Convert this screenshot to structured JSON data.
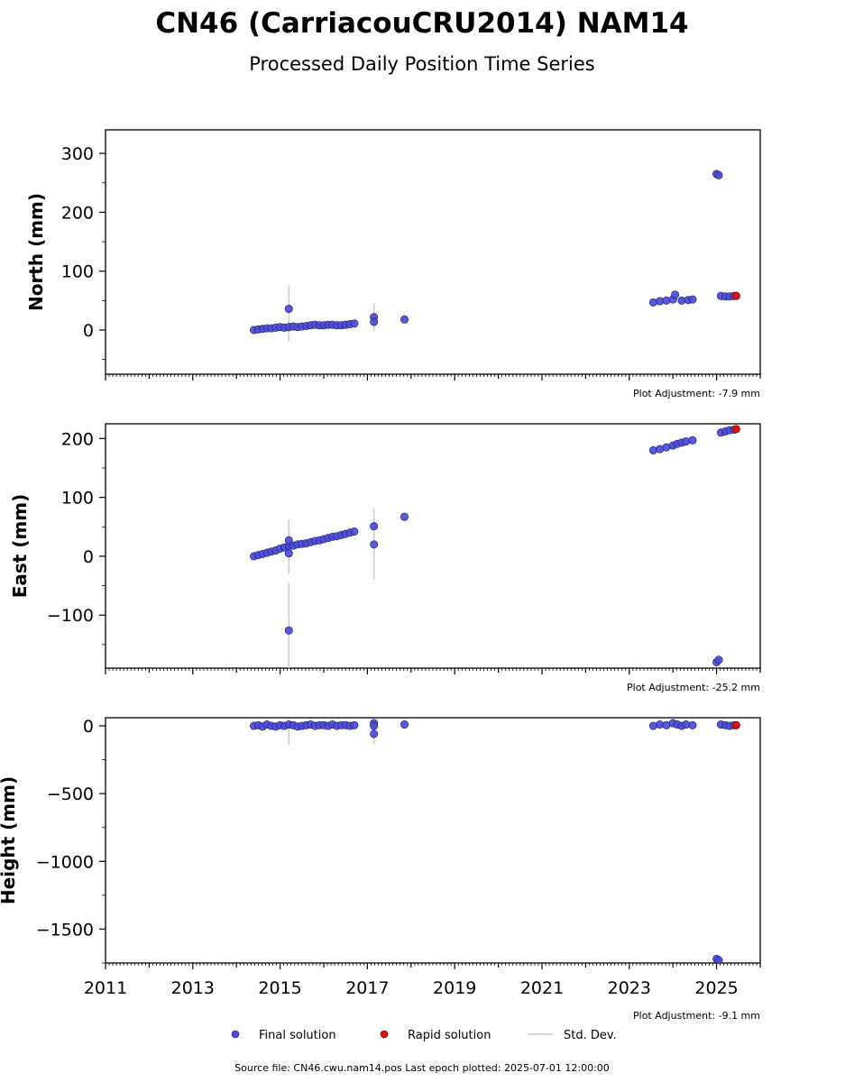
{
  "title": "CN46 (CarriacouCRU2014) NAM14",
  "subtitle": "Processed Daily Position Time Series",
  "footer": "Source file: CN46.cwu.nam14.pos  Last epoch plotted: 2025-07-01 12:00:00",
  "legend": {
    "final": "Final solution",
    "rapid": "Rapid solution",
    "std": "Std. Dev."
  },
  "colors": {
    "final": "#4a4ae0",
    "rapid": "#e01010",
    "std": "#cccccc"
  },
  "chart_data": [
    {
      "type": "scatter",
      "ylabel": "North (mm)",
      "adjustment": "Plot Adjustment: -7.9 mm",
      "xlim": [
        2011,
        2026
      ],
      "ylim": [
        -75,
        340
      ],
      "yticks": [
        0,
        100,
        200,
        300
      ],
      "ytick_labels": [
        "0",
        "100",
        "200",
        "300"
      ],
      "xticks": [
        2011,
        2013,
        2015,
        2017,
        2019,
        2021,
        2023,
        2025
      ],
      "xtick_labels": [
        "2011",
        "2013",
        "2015",
        "2017",
        "2019",
        "2021",
        "2023",
        "2025"
      ],
      "final": {
        "x": [
          2014.4,
          2014.5,
          2014.6,
          2014.7,
          2014.8,
          2014.9,
          2015.0,
          2015.1,
          2015.2,
          2015.3,
          2015.4,
          2015.5,
          2015.6,
          2015.7,
          2015.8,
          2015.9,
          2016.0,
          2016.1,
          2016.2,
          2016.3,
          2016.4,
          2016.5,
          2016.6,
          2016.7,
          2015.2,
          2017.15,
          2017.15,
          2017.85,
          2023.55,
          2023.7,
          2023.85,
          2024.0,
          2024.05,
          2024.2,
          2024.35,
          2024.45,
          2025.0,
          2025.05,
          2025.1,
          2025.2,
          2025.3,
          2025.4
        ],
        "y": [
          0,
          1,
          2,
          3,
          3,
          4,
          5,
          4,
          5,
          6,
          5,
          6,
          7,
          8,
          9,
          8,
          8,
          9,
          9,
          8,
          8,
          9,
          10,
          11,
          36,
          22,
          14,
          18,
          47,
          49,
          50,
          52,
          60,
          50,
          51,
          52,
          265,
          263,
          58,
          57,
          57,
          58
        ]
      },
      "rapid": {
        "x": [
          2025.45
        ],
        "y": [
          58
        ]
      },
      "std": [
        {
          "x": 2015.2,
          "y0": -20,
          "y1": 76
        },
        {
          "x": 2017.15,
          "y0": -2,
          "y1": 46
        }
      ]
    },
    {
      "type": "scatter",
      "ylabel": "East (mm)",
      "adjustment": "Plot Adjustment: -25.2 mm",
      "xlim": [
        2011,
        2026
      ],
      "ylim": [
        -190,
        225
      ],
      "yticks": [
        -100,
        0,
        100,
        200
      ],
      "ytick_labels": [
        "−100",
        "0",
        "100",
        "200"
      ],
      "xticks": [
        2011,
        2013,
        2015,
        2017,
        2019,
        2021,
        2023,
        2025
      ],
      "xtick_labels": [
        "2011",
        "2013",
        "2015",
        "2017",
        "2019",
        "2021",
        "2023",
        "2025"
      ],
      "final": {
        "x": [
          2014.4,
          2014.5,
          2014.6,
          2014.7,
          2014.8,
          2014.9,
          2015.0,
          2015.1,
          2015.2,
          2015.3,
          2015.4,
          2015.5,
          2015.6,
          2015.7,
          2015.8,
          2015.9,
          2016.0,
          2016.1,
          2016.2,
          2016.3,
          2016.4,
          2016.5,
          2016.6,
          2016.7,
          2015.2,
          2015.2,
          2015.2,
          2017.15,
          2017.15,
          2017.85,
          2023.55,
          2023.7,
          2023.85,
          2024.0,
          2024.1,
          2024.2,
          2024.3,
          2024.45,
          2025.0,
          2025.05,
          2025.1,
          2025.2,
          2025.3,
          2025.4
        ],
        "y": [
          0,
          2,
          4,
          6,
          8,
          10,
          13,
          15,
          17,
          18,
          20,
          21,
          22,
          24,
          26,
          27,
          29,
          31,
          33,
          34,
          36,
          38,
          40,
          42,
          27,
          5,
          -126,
          51,
          20,
          67,
          180,
          182,
          185,
          188,
          191,
          193,
          195,
          197,
          -180,
          -176,
          210,
          212,
          214,
          215
        ]
      },
      "rapid": {
        "x": [
          2025.45
        ],
        "y": [
          216
        ]
      },
      "std": [
        {
          "x": 2015.2,
          "y0": -30,
          "y1": 63
        },
        {
          "x": 2015.2,
          "y0": -190,
          "y1": -45
        },
        {
          "x": 2017.15,
          "y0": -40,
          "y1": 82
        }
      ]
    },
    {
      "type": "scatter",
      "ylabel": "Height (mm)",
      "adjustment": "Plot Adjustment: -9.1 mm",
      "xlim": [
        2011,
        2026
      ],
      "ylim": [
        -1750,
        60
      ],
      "yticks": [
        -1500,
        -1000,
        -500,
        0
      ],
      "ytick_labels": [
        "−1500",
        "−1000",
        "−500",
        "0"
      ],
      "xticks": [
        2011,
        2013,
        2015,
        2017,
        2019,
        2021,
        2023,
        2025
      ],
      "xtick_labels": [
        "2011",
        "2013",
        "2015",
        "2017",
        "2019",
        "2021",
        "2023",
        "2025"
      ],
      "final": {
        "x": [
          2014.4,
          2014.5,
          2014.6,
          2014.7,
          2014.8,
          2014.9,
          2015.0,
          2015.1,
          2015.2,
          2015.3,
          2015.4,
          2015.5,
          2015.6,
          2015.7,
          2015.8,
          2015.9,
          2016.0,
          2016.1,
          2016.2,
          2016.3,
          2016.4,
          2016.5,
          2016.6,
          2016.7,
          2017.15,
          2017.15,
          2017.15,
          2017.85,
          2023.55,
          2023.7,
          2023.85,
          2024.0,
          2024.1,
          2024.2,
          2024.3,
          2024.45,
          2025.0,
          2025.05,
          2025.1,
          2025.2,
          2025.3,
          2025.4
        ],
        "y": [
          0,
          5,
          -5,
          10,
          0,
          -5,
          5,
          0,
          10,
          5,
          -5,
          0,
          5,
          10,
          0,
          5,
          5,
          0,
          10,
          0,
          5,
          5,
          0,
          5,
          20,
          0,
          -60,
          10,
          0,
          10,
          5,
          20,
          10,
          0,
          10,
          5,
          -1720,
          -1730,
          10,
          5,
          0,
          5
        ]
      },
      "rapid": {
        "x": [
          2025.45
        ],
        "y": [
          5
        ]
      },
      "std": [
        {
          "x": 2015.2,
          "y0": -140,
          "y1": 40
        },
        {
          "x": 2017.15,
          "y0": -140,
          "y1": 40
        }
      ]
    }
  ]
}
